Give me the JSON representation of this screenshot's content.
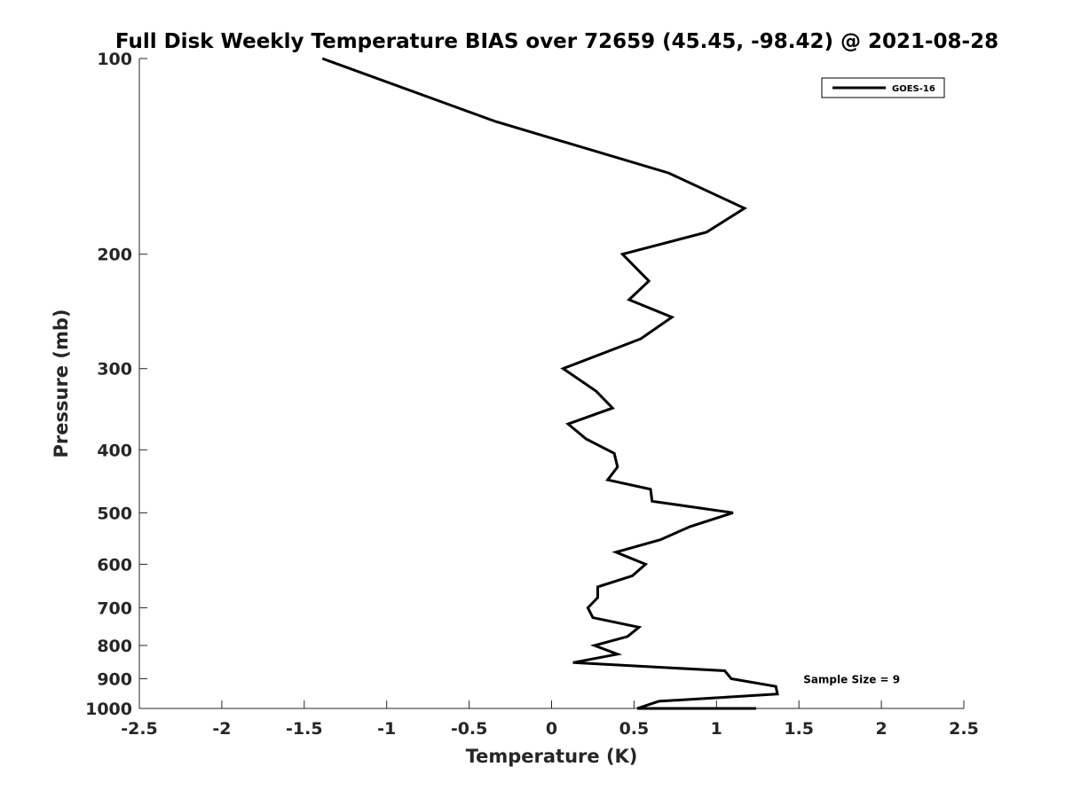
{
  "chart_data": {
    "type": "line",
    "title": "Full Disk Weekly Temperature BIAS over 72659 (45.45, -98.42) @ 2021-08-28",
    "xlabel": "Temperature (K)",
    "ylabel": "Pressure (mb)",
    "xlim": [
      -2.5,
      2.5
    ],
    "ylim": [
      1000,
      100
    ],
    "y_scale": "log",
    "y_reversed": true,
    "x_ticks": [
      -2.5,
      -2,
      -1.5,
      -1,
      -0.5,
      0,
      0.5,
      1,
      1.5,
      2,
      2.5
    ],
    "x_tick_labels": [
      "-2.5",
      "-2",
      "-1.5",
      "-1",
      "-0.5",
      "0",
      "0.5",
      "1",
      "1.5",
      "2",
      "2.5"
    ],
    "y_ticks": [
      100,
      200,
      300,
      400,
      500,
      600,
      700,
      800,
      900,
      1000
    ],
    "y_tick_labels": [
      "100",
      "200",
      "300",
      "400",
      "500",
      "600",
      "700",
      "800",
      "900",
      "1000"
    ],
    "grid": false,
    "legend_position": "top-right",
    "series": [
      {
        "name": "GOES-16",
        "color": "#000000",
        "x": [
          -1.39,
          -0.34,
          0.71,
          1.17,
          0.94,
          0.43,
          0.59,
          0.47,
          0.73,
          0.54,
          0.07,
          0.27,
          0.37,
          0.1,
          0.21,
          0.38,
          0.4,
          0.34,
          0.6,
          0.61,
          1.1,
          0.84,
          0.66,
          0.39,
          0.57,
          0.49,
          0.28,
          0.28,
          0.22,
          0.25,
          0.53,
          0.46,
          0.26,
          0.4,
          0.13,
          1.05,
          1.09,
          1.36,
          1.37,
          0.65,
          0.52,
          1.24
        ],
        "y": [
          100,
          125,
          150,
          170,
          185,
          200,
          220,
          235,
          250,
          270,
          300,
          325,
          345,
          365,
          385,
          405,
          425,
          445,
          460,
          480,
          500,
          525,
          550,
          575,
          600,
          625,
          650,
          675,
          700,
          725,
          750,
          775,
          800,
          825,
          850,
          875,
          900,
          925,
          950,
          975,
          1000,
          1000
        ]
      }
    ],
    "annotations": [
      "Sample Size = 9"
    ]
  }
}
